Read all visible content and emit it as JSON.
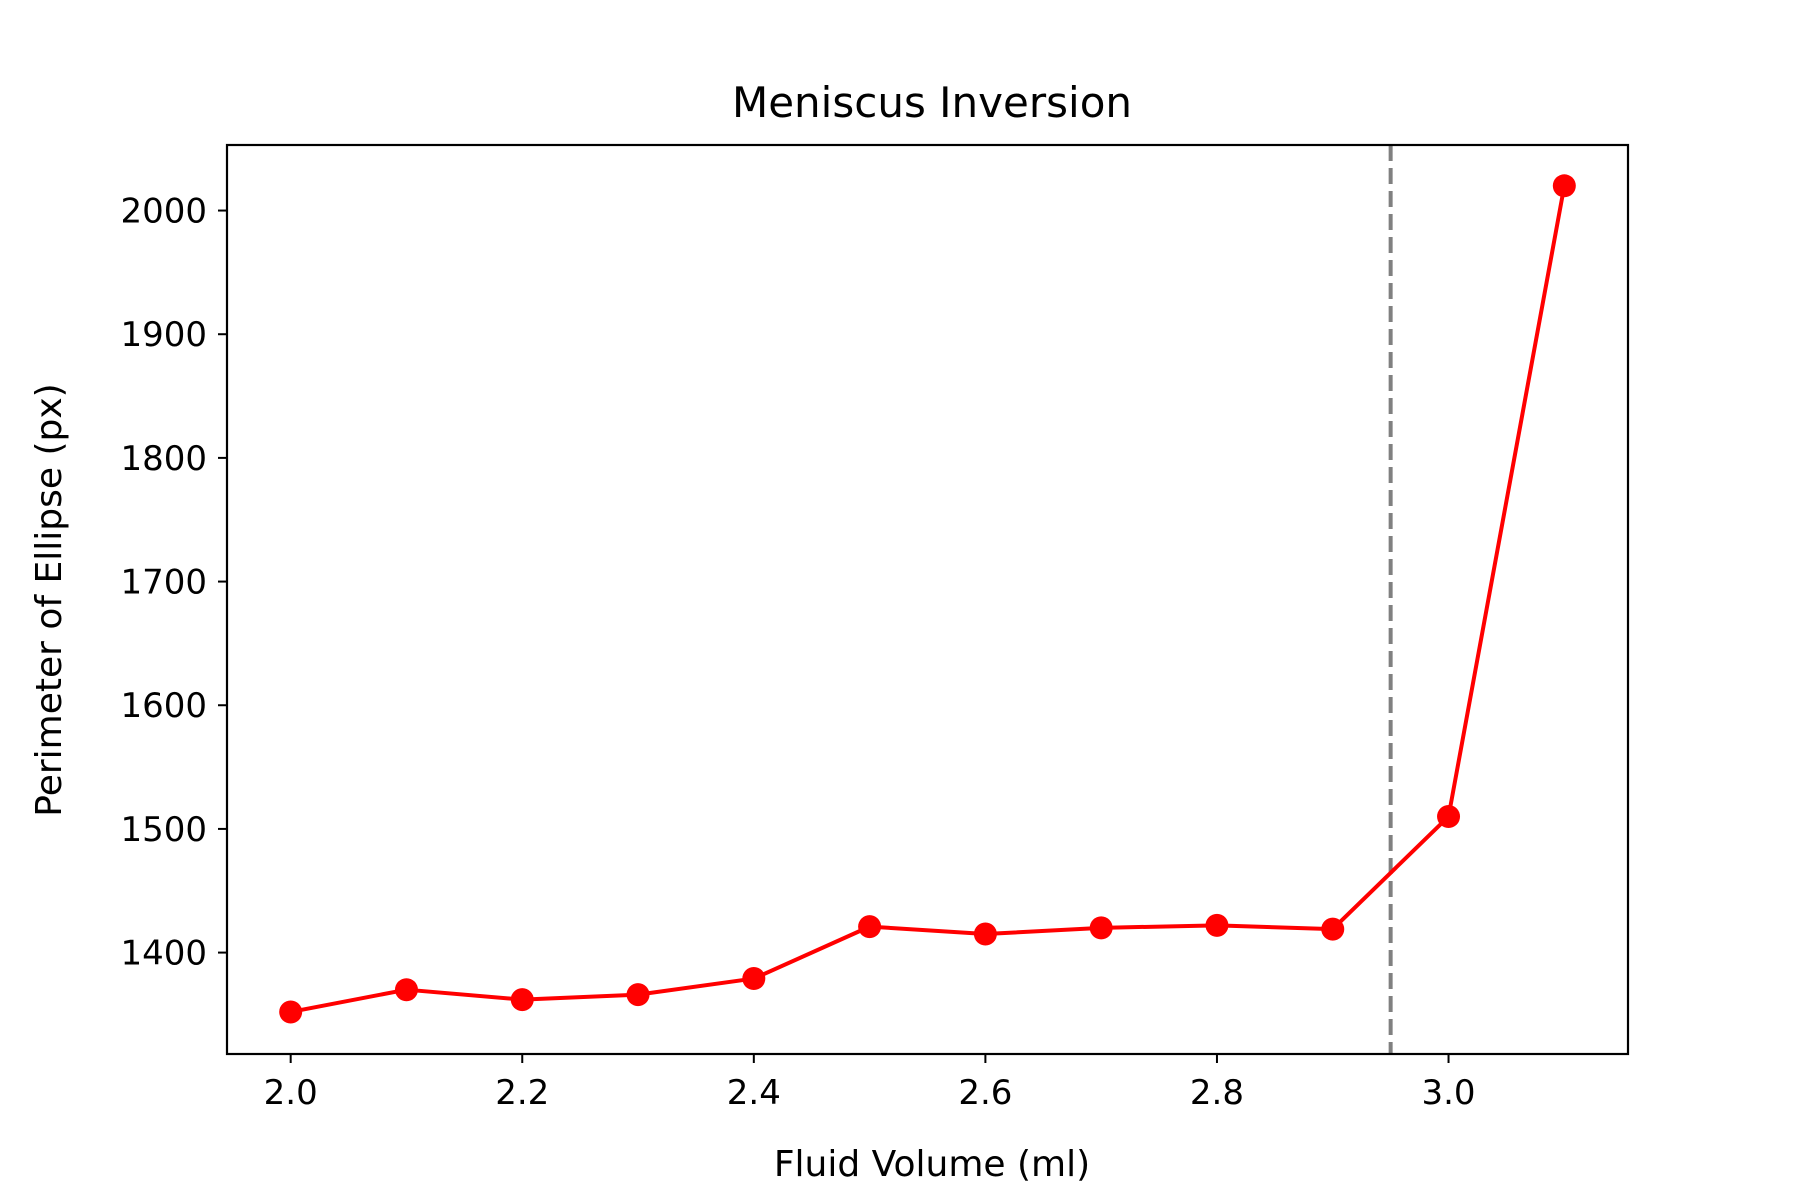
{
  "chart_data": {
    "type": "line",
    "title": "Meniscus Inversion",
    "xlabel": "Fluid Volume (ml)",
    "ylabel": "Perimeter of Ellipse (px)",
    "xlim": [
      1.945,
      3.155
    ],
    "ylim": [
      1318,
      2053
    ],
    "xticks": [
      2.0,
      2.2,
      2.4,
      2.6,
      2.8,
      3.0
    ],
    "xtick_labels": [
      "2.0",
      "2.2",
      "2.4",
      "2.6",
      "2.8",
      "3.0"
    ],
    "yticks": [
      1400,
      1500,
      1600,
      1700,
      1800,
      1900,
      2000
    ],
    "ytick_labels": [
      "1400",
      "1500",
      "1600",
      "1700",
      "1800",
      "1900",
      "2000"
    ],
    "grid": false,
    "legend": "none",
    "series": [
      {
        "color": "#ff0000",
        "marker": "circle",
        "x": [
          2.0,
          2.1,
          2.2,
          2.3,
          2.4,
          2.5,
          2.6,
          2.7,
          2.8,
          2.9,
          3.0,
          3.1
        ],
        "y": [
          1352,
          1370,
          1362,
          1366,
          1379,
          1421,
          1415,
          1420,
          1422,
          1419,
          1510,
          2020
        ]
      }
    ],
    "reference_lines": [
      {
        "orientation": "vertical",
        "x": 2.95,
        "color": "#808080",
        "style": "dashed"
      }
    ]
  }
}
